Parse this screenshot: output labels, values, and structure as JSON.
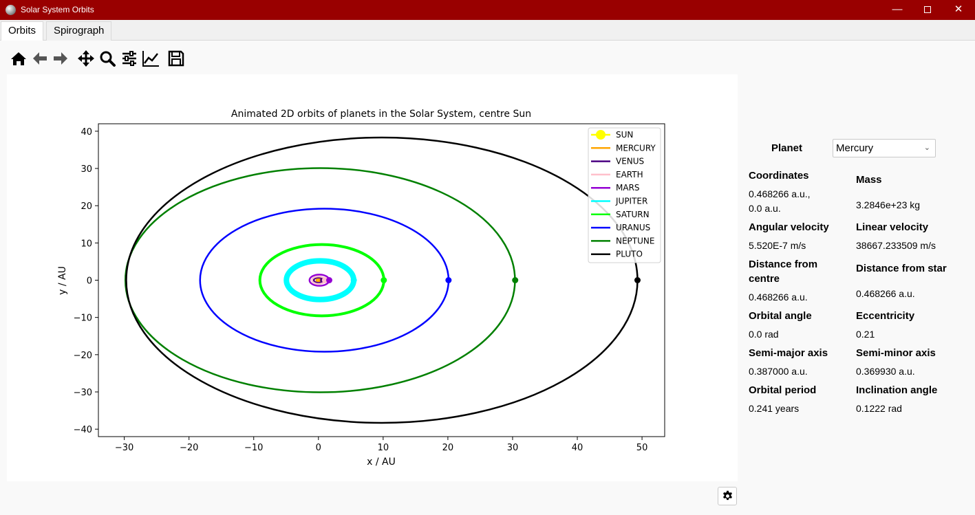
{
  "window": {
    "title": "Solar System Orbits"
  },
  "tabs": [
    {
      "label": "Orbits"
    },
    {
      "label": "Spirograph"
    }
  ],
  "toolbar": {
    "icons": [
      "home-icon",
      "back-arrow-icon",
      "forward-arrow-icon",
      "pan-icon",
      "zoom-icon",
      "configure-subplots-icon",
      "edit-axis-icon",
      "save-icon"
    ]
  },
  "panel": {
    "planet_label": "Planet",
    "planet_selected": "Mercury",
    "fields": {
      "coordinates": {
        "label": "Coordinates",
        "value_line1": "0.468266 a.u.,",
        "value_line2": "0.0 a.u."
      },
      "mass": {
        "label": "Mass",
        "value": "3.2846e+23 kg"
      },
      "angular_velocity": {
        "label": "Angular velocity",
        "value": "5.520E-7 m/s"
      },
      "linear_velocity": {
        "label": "Linear velocity",
        "value": "38667.233509 m/s"
      },
      "distance_centre": {
        "label_line1": "Distance from",
        "label_line2": "centre",
        "value": "0.468266 a.u."
      },
      "distance_star": {
        "label": "Distance from star",
        "value": "0.468266 a.u."
      },
      "orbital_angle": {
        "label": "Orbital angle",
        "value": "0.0 rad"
      },
      "eccentricity": {
        "label": "Eccentricity",
        "value": "0.21"
      },
      "semi_major": {
        "label": "Semi-major axis",
        "value": "0.387000 a.u."
      },
      "semi_minor": {
        "label": "Semi-minor axis",
        "value": "0.369930 a.u."
      },
      "orbital_period": {
        "label": "Orbital period",
        "value": "0.241 years"
      },
      "inclination": {
        "label": "Inclination angle",
        "value": "0.1222 rad"
      }
    }
  },
  "chart_data": {
    "type": "line",
    "title": "Animated 2D orbits of planets in the Solar System, centre Sun",
    "xlabel": "x / AU",
    "ylabel": "y / AU",
    "xlim": [
      -34,
      53.5
    ],
    "ylim": [
      -42,
      42
    ],
    "xticks": [
      -30,
      -20,
      -10,
      0,
      10,
      20,
      30,
      40,
      50
    ],
    "yticks": [
      40,
      30,
      20,
      10,
      0,
      -10,
      -20,
      -30,
      -40
    ],
    "tick_labels_x": [
      "−30",
      "−20",
      "−10",
      "0",
      "10",
      "20",
      "30",
      "40",
      "50"
    ],
    "tick_labels_y": [
      "40",
      "30",
      "20",
      "10",
      "0",
      "−10",
      "−20",
      "−30",
      "−40"
    ],
    "grid": false,
    "legend_position": "top-right",
    "series": [
      {
        "name": "SUN",
        "color": "#ffff00",
        "cx": 0,
        "rx": 0,
        "ry": 0,
        "marker": [
          0,
          0
        ]
      },
      {
        "name": "MERCURY",
        "color": "#ffa500",
        "cx": 0.08,
        "rx": 0.39,
        "ry": 0.37,
        "marker": [
          0.47,
          0
        ]
      },
      {
        "name": "VENUS",
        "color": "#4b0082",
        "cx": 0.005,
        "rx": 0.72,
        "ry": 0.72,
        "marker": [
          0.73,
          0
        ]
      },
      {
        "name": "EARTH",
        "color": "#ffc0cb",
        "cx": 0.017,
        "rx": 1.0,
        "ry": 1.0,
        "marker": [
          1.02,
          0
        ]
      },
      {
        "name": "MARS",
        "color": "#9400d3",
        "cx": 0.14,
        "rx": 1.52,
        "ry": 1.51,
        "marker": [
          1.67,
          0
        ]
      },
      {
        "name": "JUPITER",
        "color": "#00ffff",
        "cx": 0.25,
        "rx": 5.2,
        "ry": 5.19,
        "marker": [
          5.46,
          0
        ]
      },
      {
        "name": "SATURN",
        "color": "#00ff00",
        "cx": 0.53,
        "rx": 9.58,
        "ry": 9.57,
        "marker": [
          10.1,
          0
        ]
      },
      {
        "name": "URANUS",
        "color": "#0000ff",
        "cx": 0.91,
        "rx": 19.2,
        "ry": 19.2,
        "marker": [
          20.1,
          0
        ]
      },
      {
        "name": "NEPTUNE",
        "color": "#008000",
        "cx": 0.27,
        "rx": 30.1,
        "ry": 30.1,
        "marker": [
          30.4,
          0
        ]
      },
      {
        "name": "PLUTO",
        "color": "#000000",
        "cx": 9.8,
        "rx": 39.5,
        "ry": 38.3,
        "marker": [
          49.3,
          0
        ]
      }
    ]
  }
}
